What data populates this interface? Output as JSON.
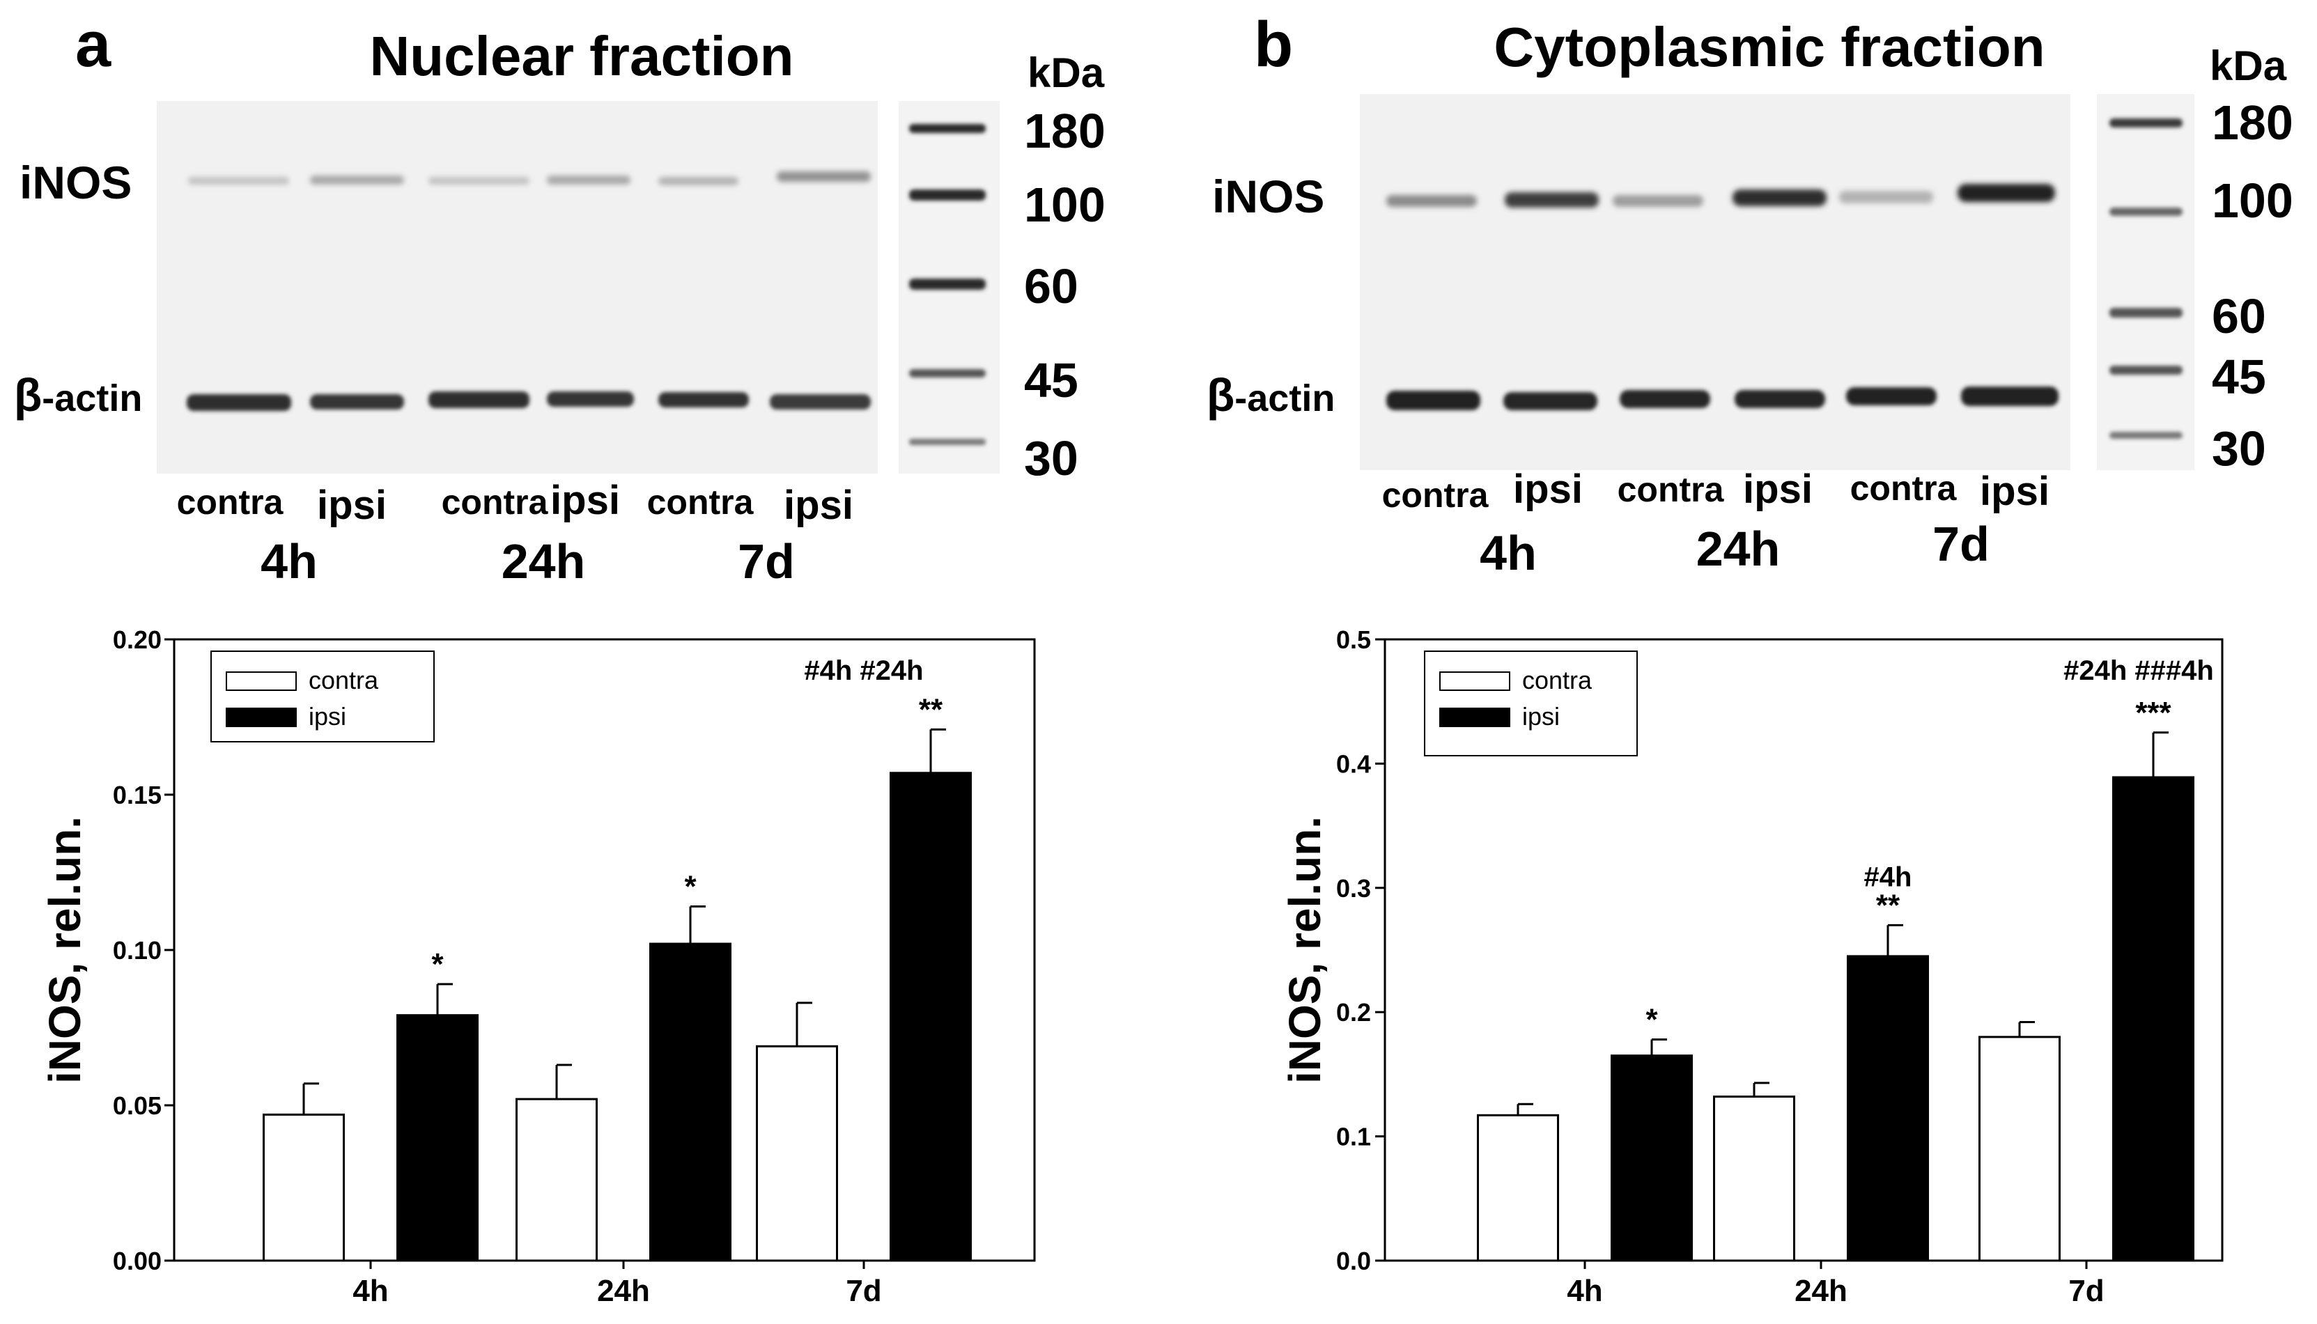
{
  "colors": {
    "blot_bg": "#f1f1f1",
    "band": "#2a2a2a",
    "bar_ipsi": "#000000",
    "bar_contra": "#ffffff"
  },
  "panel_a": {
    "letter": "a",
    "title": "Nuclear fraction",
    "kda_label": "kDa",
    "markers": [
      "180",
      "100",
      "60",
      "45",
      "30"
    ],
    "row_labels": {
      "inos": "iNOS",
      "actin_beta": "β",
      "actin_rest": "-actin"
    },
    "lane_labels": [
      "contra",
      "ipsi",
      "contra",
      "ipsi",
      "contra",
      "ipsi"
    ],
    "group_labels": [
      "4h",
      "24h",
      "7d"
    ]
  },
  "panel_b": {
    "letter": "b",
    "title": "Cytoplasmic fraction",
    "kda_label": "kDa",
    "markers": [
      "180",
      "100",
      "60",
      "45",
      "30"
    ],
    "row_labels": {
      "inos": "iNOS",
      "actin_beta": "β",
      "actin_rest": "-actin"
    },
    "lane_labels": [
      "contra",
      "ipsi",
      "contra",
      "ipsi",
      "contra",
      "ipsi"
    ],
    "group_labels": [
      "4h",
      "24h",
      "7d"
    ]
  },
  "chart_data": [
    {
      "type": "bar",
      "title": "",
      "xlabel": "",
      "ylabel": "iNOS, rel.un.",
      "categories": [
        "4h",
        "24h",
        "7d"
      ],
      "ylim": [
        0,
        0.2
      ],
      "yticks": [
        "0.00",
        "0.05",
        "0.10",
        "0.15",
        "0.20"
      ],
      "series": [
        {
          "name": "contra",
          "values": [
            0.047,
            0.052,
            0.069
          ],
          "errors": [
            0.01,
            0.011,
            0.014
          ],
          "annotations": [
            "",
            "",
            ""
          ]
        },
        {
          "name": "ipsi",
          "values": [
            0.079,
            0.102,
            0.157
          ],
          "errors": [
            0.01,
            0.012,
            0.014
          ],
          "annotations": [
            "*",
            "*",
            "**"
          ]
        }
      ],
      "extra_annotations": [
        {
          "category": "24h",
          "text": ""
        },
        {
          "category": "7d",
          "text": "#4h #24h"
        }
      ],
      "legend": "top-left"
    },
    {
      "type": "bar",
      "title": "",
      "xlabel": "",
      "ylabel": "iNOS, rel.un.",
      "categories": [
        "4h",
        "24h",
        "7d"
      ],
      "ylim": [
        0,
        0.5
      ],
      "yticks": [
        "0.0",
        "0.1",
        "0.2",
        "0.3",
        "0.4",
        "0.5"
      ],
      "series": [
        {
          "name": "contra",
          "values": [
            0.117,
            0.132,
            0.18
          ],
          "errors": [
            0.009,
            0.011,
            0.012
          ],
          "annotations": [
            "",
            "",
            ""
          ]
        },
        {
          "name": "ipsi",
          "values": [
            0.165,
            0.245,
            0.389
          ],
          "errors": [
            0.013,
            0.025,
            0.036
          ],
          "annotations": [
            "*",
            "**",
            "***"
          ]
        }
      ],
      "extra_annotations": [
        {
          "category": "24h",
          "text": "#4h"
        },
        {
          "category": "7d",
          "text": "#24h ###4h"
        }
      ],
      "legend": "top-left"
    }
  ]
}
